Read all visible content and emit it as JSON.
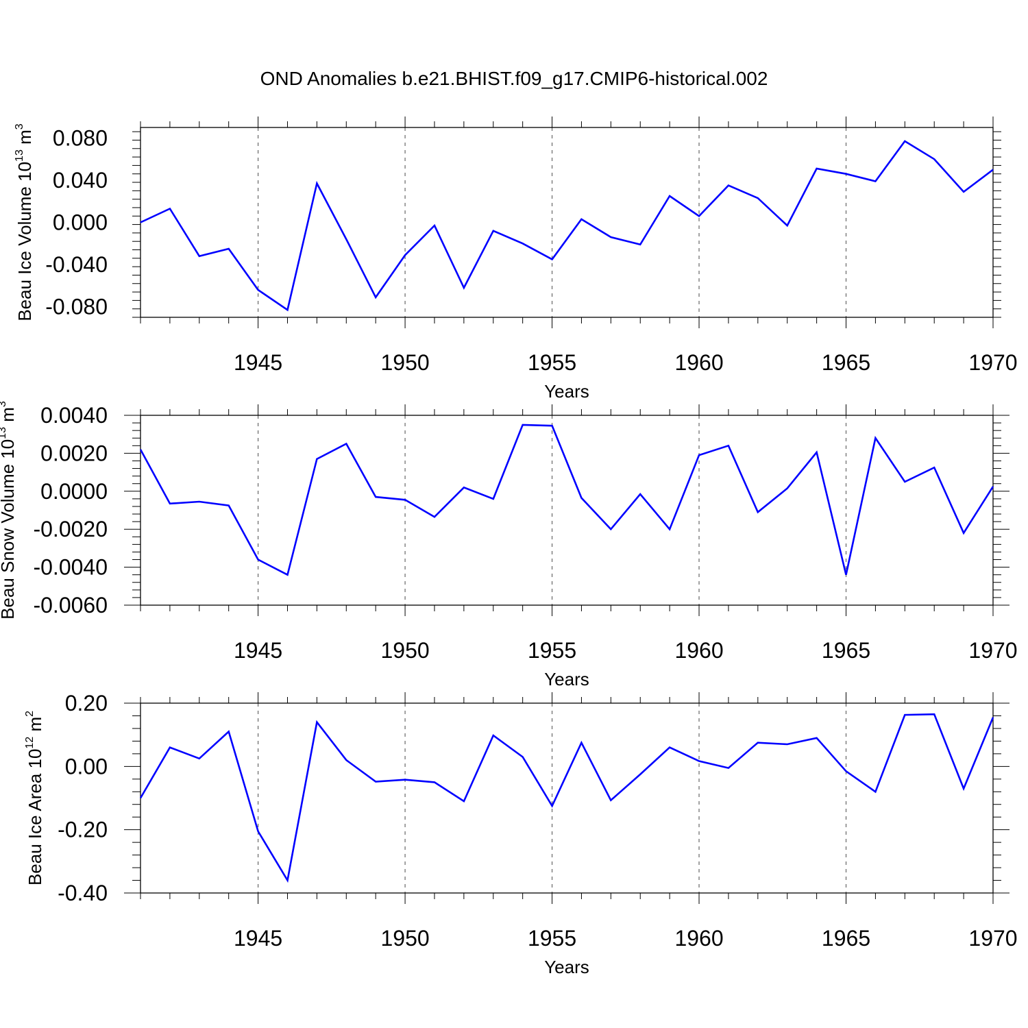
{
  "title": "OND Anomalies b.e21.BHIST.f09_g17.CMIP6-historical.002",
  "line_color": "#0000ff",
  "chart_data": [
    {
      "type": "line",
      "series_name": "Beau Ice Volume",
      "ylabel_text": "Beau Ice Volume 10",
      "ylabel_exp": "13",
      "ylabel_unit": "m",
      "ylabel_unit_exp": "3",
      "xlabel": "Years",
      "xlim": [
        1941,
        1970
      ],
      "ylim": [
        -0.09,
        0.09
      ],
      "yticks": [
        -0.08,
        -0.04,
        0.0,
        0.04,
        0.08
      ],
      "ytick_labels": [
        "-0.080",
        "-0.040",
        "0.000",
        "0.040",
        "0.080"
      ],
      "xticks": [
        1945,
        1950,
        1955,
        1960,
        1965,
        1970
      ],
      "xtick_labels": [
        "1945",
        "1950",
        "1955",
        "1960",
        "1965",
        "1970"
      ],
      "x": [
        1941,
        1942,
        1943,
        1944,
        1945,
        1946,
        1947,
        1948,
        1949,
        1950,
        1951,
        1952,
        1953,
        1954,
        1955,
        1956,
        1957,
        1958,
        1959,
        1960,
        1961,
        1962,
        1963,
        1964,
        1965,
        1966,
        1967,
        1968,
        1969,
        1970
      ],
      "values": [
        0.0,
        0.013,
        -0.032,
        -0.025,
        -0.064,
        -0.083,
        0.037,
        -0.016,
        -0.071,
        -0.031,
        -0.003,
        -0.062,
        -0.008,
        -0.02,
        -0.035,
        0.003,
        -0.014,
        -0.021,
        0.025,
        0.006,
        0.035,
        0.023,
        -0.003,
        0.051,
        0.046,
        0.039,
        0.077,
        0.06,
        0.029,
        0.05
      ]
    },
    {
      "type": "line",
      "series_name": "Beau Snow Volume",
      "ylabel_text": "Beau Snow Volume 10",
      "ylabel_exp": "13",
      "ylabel_unit": "m",
      "ylabel_unit_exp": "3",
      "xlabel": "Years",
      "xlim": [
        1941,
        1970
      ],
      "ylim": [
        -0.006,
        0.004
      ],
      "yticks": [
        -0.006,
        -0.004,
        -0.002,
        0.0,
        0.002,
        0.004
      ],
      "ytick_labels": [
        "-0.0060",
        "-0.0040",
        "-0.0020",
        "0.0000",
        "0.0020",
        "0.0040"
      ],
      "xticks": [
        1945,
        1950,
        1955,
        1960,
        1965,
        1970
      ],
      "xtick_labels": [
        "1945",
        "1950",
        "1955",
        "1960",
        "1965",
        "1970"
      ],
      "x": [
        1941,
        1942,
        1943,
        1944,
        1945,
        1946,
        1947,
        1948,
        1949,
        1950,
        1951,
        1952,
        1953,
        1954,
        1955,
        1956,
        1957,
        1958,
        1959,
        1960,
        1961,
        1962,
        1963,
        1964,
        1965,
        1966,
        1967,
        1968,
        1969,
        1970
      ],
      "values": [
        0.0022,
        -0.00065,
        -0.00055,
        -0.00075,
        -0.0036,
        -0.0044,
        0.0017,
        0.0025,
        -0.0003,
        -0.00045,
        -0.00135,
        0.0002,
        -0.0004,
        0.0035,
        0.00345,
        -0.00035,
        -0.002,
        -0.00015,
        -0.002,
        0.0019,
        0.0024,
        -0.0011,
        0.00015,
        0.00205,
        -0.0044,
        0.0028,
        0.0005,
        0.00125,
        -0.0022,
        0.00025
      ]
    },
    {
      "type": "line",
      "series_name": "Beau Ice Area",
      "ylabel_text": "Beau Ice Area 10",
      "ylabel_exp": "12",
      "ylabel_unit": "m",
      "ylabel_unit_exp": "2",
      "xlabel": "Years",
      "xlim": [
        1941,
        1970
      ],
      "ylim": [
        -0.4,
        0.2
      ],
      "yticks": [
        -0.4,
        -0.2,
        0.0,
        0.2
      ],
      "ytick_labels": [
        "-0.40",
        "-0.20",
        "0.00",
        "0.20"
      ],
      "xticks": [
        1945,
        1950,
        1955,
        1960,
        1965,
        1970
      ],
      "xtick_labels": [
        "1945",
        "1950",
        "1955",
        "1960",
        "1965",
        "1970"
      ],
      "x": [
        1941,
        1942,
        1943,
        1944,
        1945,
        1946,
        1947,
        1948,
        1949,
        1950,
        1951,
        1952,
        1953,
        1954,
        1955,
        1956,
        1957,
        1958,
        1959,
        1960,
        1961,
        1962,
        1963,
        1964,
        1965,
        1966,
        1967,
        1968,
        1969,
        1970
      ],
      "values": [
        -0.1,
        0.06,
        0.025,
        0.11,
        -0.205,
        -0.36,
        0.14,
        0.02,
        -0.048,
        -0.042,
        -0.05,
        -0.11,
        0.098,
        0.03,
        -0.125,
        0.075,
        -0.107,
        -0.025,
        0.06,
        0.017,
        -0.005,
        0.075,
        0.07,
        0.09,
        -0.015,
        -0.08,
        0.163,
        0.165,
        -0.07,
        0.155
      ]
    }
  ]
}
